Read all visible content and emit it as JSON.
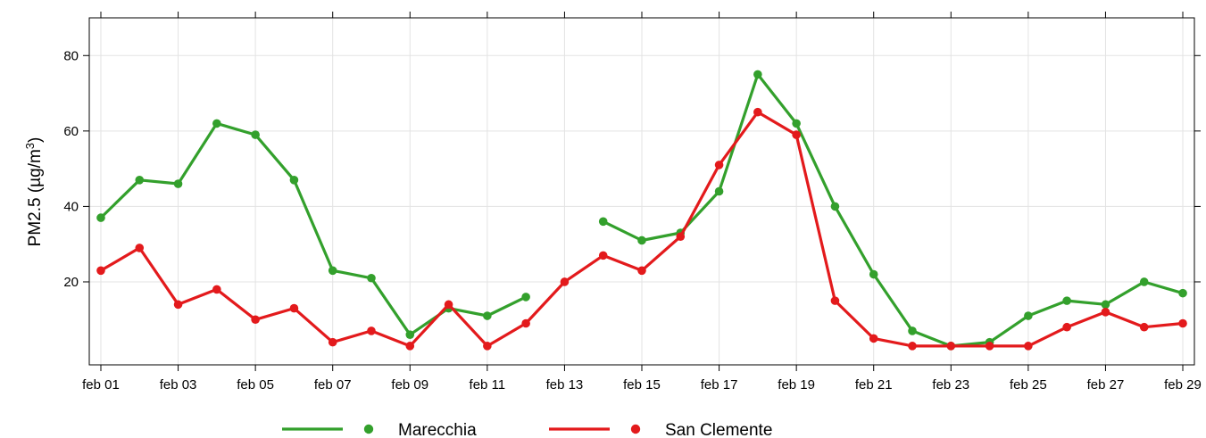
{
  "chart_data": {
    "type": "line",
    "ylabel": "PM2.5 (µg/m³)",
    "ylabel_parts": {
      "text": "PM2.5 (µg/m",
      "sup": "3",
      "close": ")"
    },
    "ylim": [
      -2,
      90
    ],
    "yticks": [
      20,
      40,
      60,
      80
    ],
    "xlim": [
      0.7,
      29.3
    ],
    "xticks": [
      {
        "day": 1,
        "label": "feb 01"
      },
      {
        "day": 3,
        "label": "feb 03"
      },
      {
        "day": 5,
        "label": "feb 05"
      },
      {
        "day": 7,
        "label": "feb 07"
      },
      {
        "day": 9,
        "label": "feb 09"
      },
      {
        "day": 11,
        "label": "feb 11"
      },
      {
        "day": 13,
        "label": "feb 13"
      },
      {
        "day": 15,
        "label": "feb 15"
      },
      {
        "day": 17,
        "label": "feb 17"
      },
      {
        "day": 19,
        "label": "feb 19"
      },
      {
        "day": 21,
        "label": "feb 21"
      },
      {
        "day": 23,
        "label": "feb 23"
      },
      {
        "day": 25,
        "label": "feb 25"
      },
      {
        "day": 27,
        "label": "feb 27"
      },
      {
        "day": 29,
        "label": "feb 29"
      }
    ],
    "grid": true,
    "legend_position": "bottom",
    "x": [
      1,
      2,
      3,
      4,
      5,
      6,
      7,
      8,
      9,
      10,
      11,
      12,
      13,
      14,
      15,
      16,
      17,
      18,
      19,
      20,
      21,
      22,
      23,
      24,
      25,
      26,
      27,
      28,
      29
    ],
    "series": [
      {
        "name": "Marecchia",
        "color": "#33a02c",
        "values": [
          37,
          47,
          46,
          62,
          59,
          47,
          23,
          21,
          6,
          13,
          11,
          16,
          null,
          36,
          31,
          33,
          44,
          75,
          62,
          40,
          22,
          7,
          3,
          4,
          11,
          15,
          14,
          20,
          17
        ]
      },
      {
        "name": "San Clemente",
        "color": "#e31a1c",
        "values": [
          23,
          29,
          14,
          18,
          10,
          13,
          4,
          7,
          3,
          14,
          3,
          9,
          20,
          27,
          23,
          32,
          51,
          65,
          59,
          15,
          5,
          3,
          3,
          3,
          3,
          8,
          12,
          8,
          9
        ]
      }
    ]
  }
}
